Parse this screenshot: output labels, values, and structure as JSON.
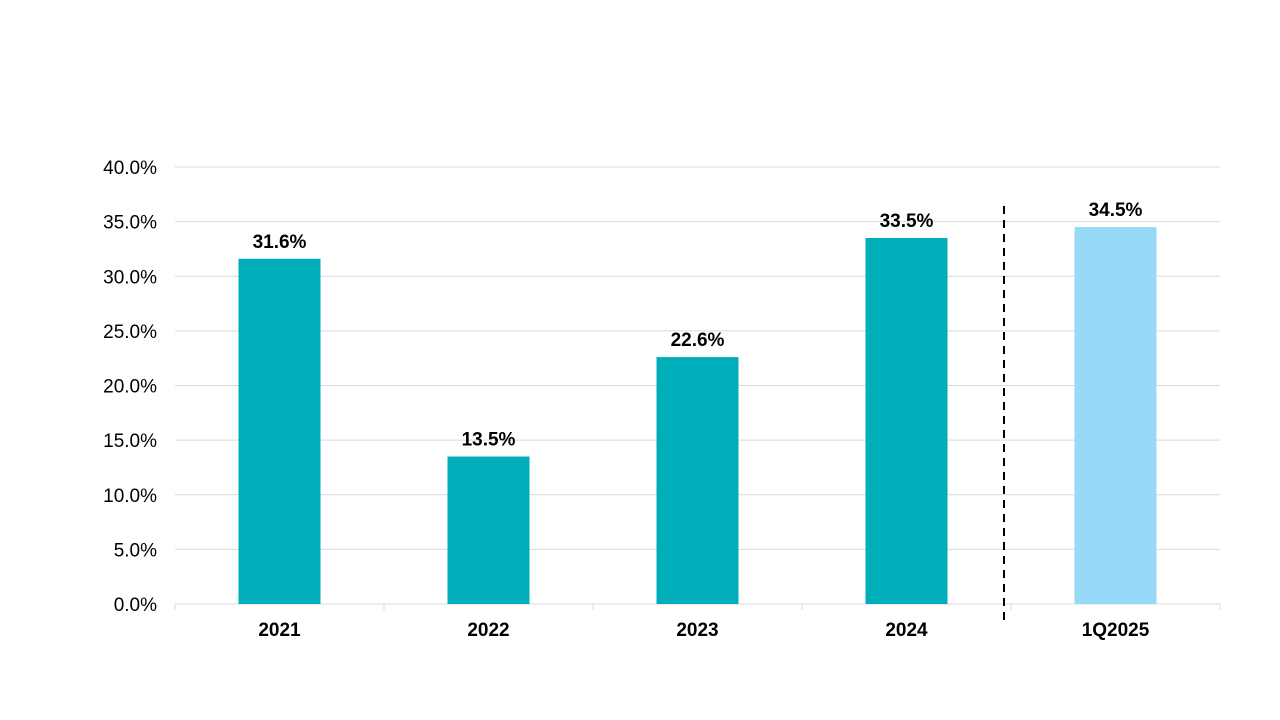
{
  "chart_data": {
    "type": "bar",
    "title": "",
    "xlabel": "",
    "ylabel": "",
    "categories": [
      "2021",
      "2022",
      "2023",
      "2024",
      "1Q2025"
    ],
    "values": [
      31.6,
      13.5,
      22.6,
      33.5,
      34.5
    ],
    "data_labels": [
      "31.6%",
      "13.5%",
      "22.6%",
      "33.5%",
      "34.5%"
    ],
    "bar_colors": [
      "#00AEB9",
      "#00AEB9",
      "#00AEB9",
      "#00AEB9",
      "#97D9F7"
    ],
    "ylim": [
      0,
      40
    ],
    "yticks": [
      0,
      5,
      10,
      15,
      20,
      25,
      30,
      35,
      40
    ],
    "ytick_labels": [
      "0.0%",
      "5.0%",
      "10.0%",
      "15.0%",
      "20.0%",
      "25.0%",
      "30.0%",
      "35.0%",
      "40.0%"
    ],
    "grid": true,
    "divider_after_category": "2024",
    "legend": "none"
  }
}
